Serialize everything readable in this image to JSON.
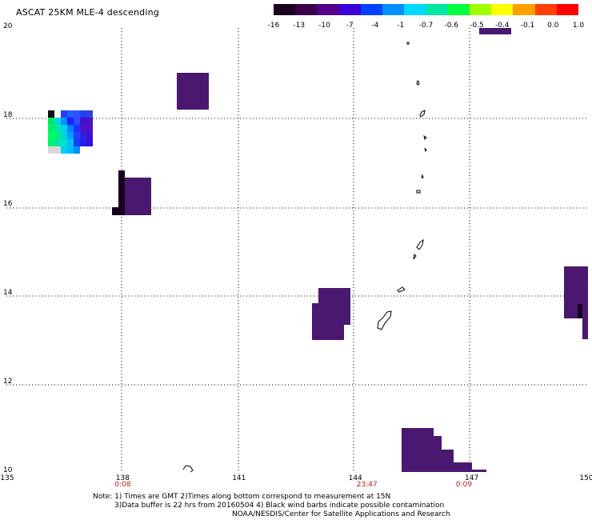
{
  "title": "ASCAT 25KM MLE-4 descending",
  "colorbar": {
    "labels": [
      "-16",
      "-13",
      "-10",
      "-7",
      "-4",
      "-1",
      "-0.7",
      "-0.6",
      "-0.5",
      "-0.4",
      "-0.1",
      "0.0",
      "1.0"
    ],
    "colors": [
      "#1a001e",
      "#3a0048",
      "#55008a",
      "#3a00d8",
      "#0040ff",
      "#0090ff",
      "#00d8ff",
      "#00e8a0",
      "#00ff40",
      "#a0ff00",
      "#ffff00",
      "#ffa000",
      "#ff4000",
      "#ff0000"
    ]
  },
  "map": {
    "lon_ticks": [
      "135",
      "138",
      "141",
      "144",
      "147",
      "150"
    ],
    "lat_ticks": [
      "20",
      "18",
      "16",
      "14",
      "12",
      "10"
    ],
    "lon_range": [
      135,
      150
    ],
    "lat_range": [
      10,
      20
    ],
    "pass_times": [
      {
        "lon": 138,
        "label": "0:08"
      },
      {
        "lon": 144.3,
        "label": "23:47"
      },
      {
        "lon": 146.8,
        "label": "0:09"
      }
    ],
    "swath_color": "#4a1870",
    "dark_color": "#1a0020",
    "coast_color": "#000000"
  },
  "notes": {
    "line1": "Note: 1) Times are GMT 2)Times along bottom correspond to measurement at 15N",
    "line2": "3)Data buffer is 22 hrs from 20160504 4) Black wind barbs indicate possible contamination",
    "line3": "NOAA/NESDIS/Center for Satellite Applications and Research"
  }
}
